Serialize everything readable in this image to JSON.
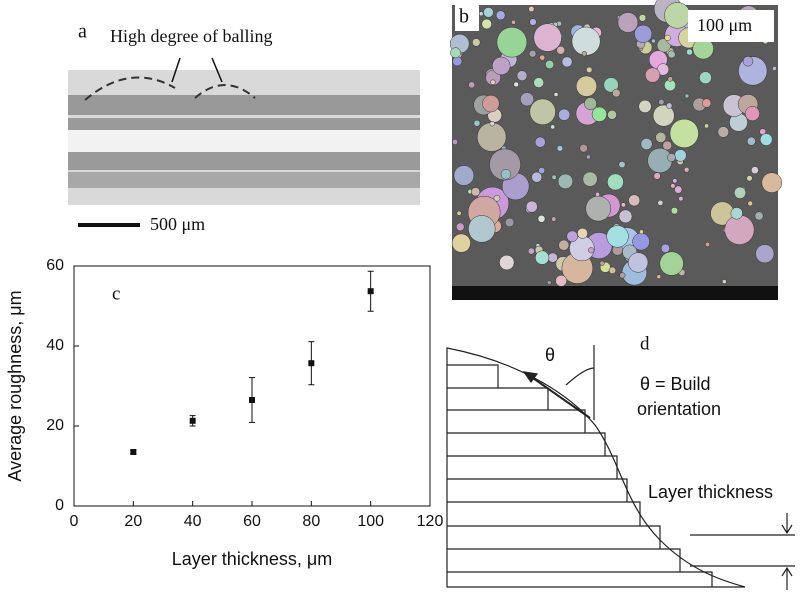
{
  "panels": {
    "a": {
      "label": "a",
      "annotation": "High degree of balling",
      "scale_bar": "500 μm"
    },
    "b": {
      "label": "b",
      "scale_bar": "100 μm"
    },
    "c": {
      "label": "c"
    },
    "d": {
      "label": "d",
      "angle": "θ",
      "angle_text_1": "θ = Build",
      "angle_text_2": "orientation",
      "layer_text": "Layer thickness"
    }
  },
  "chart_data": {
    "type": "scatter",
    "xlabel": "Layer thickness, μm",
    "ylabel": "Average roughness, μm",
    "x": [
      20,
      40,
      60,
      80,
      100
    ],
    "values": [
      13.5,
      21.3,
      26.5,
      35.7,
      53.7
    ],
    "errors": [
      0.5,
      1.3,
      5.6,
      5.4,
      5
    ],
    "color": "#111111",
    "xlim": [
      0,
      120
    ],
    "ylim": [
      0,
      60
    ],
    "xticks": [
      0,
      20,
      40,
      60,
      80,
      100,
      120
    ],
    "yticks": [
      0,
      20,
      40,
      60
    ]
  }
}
